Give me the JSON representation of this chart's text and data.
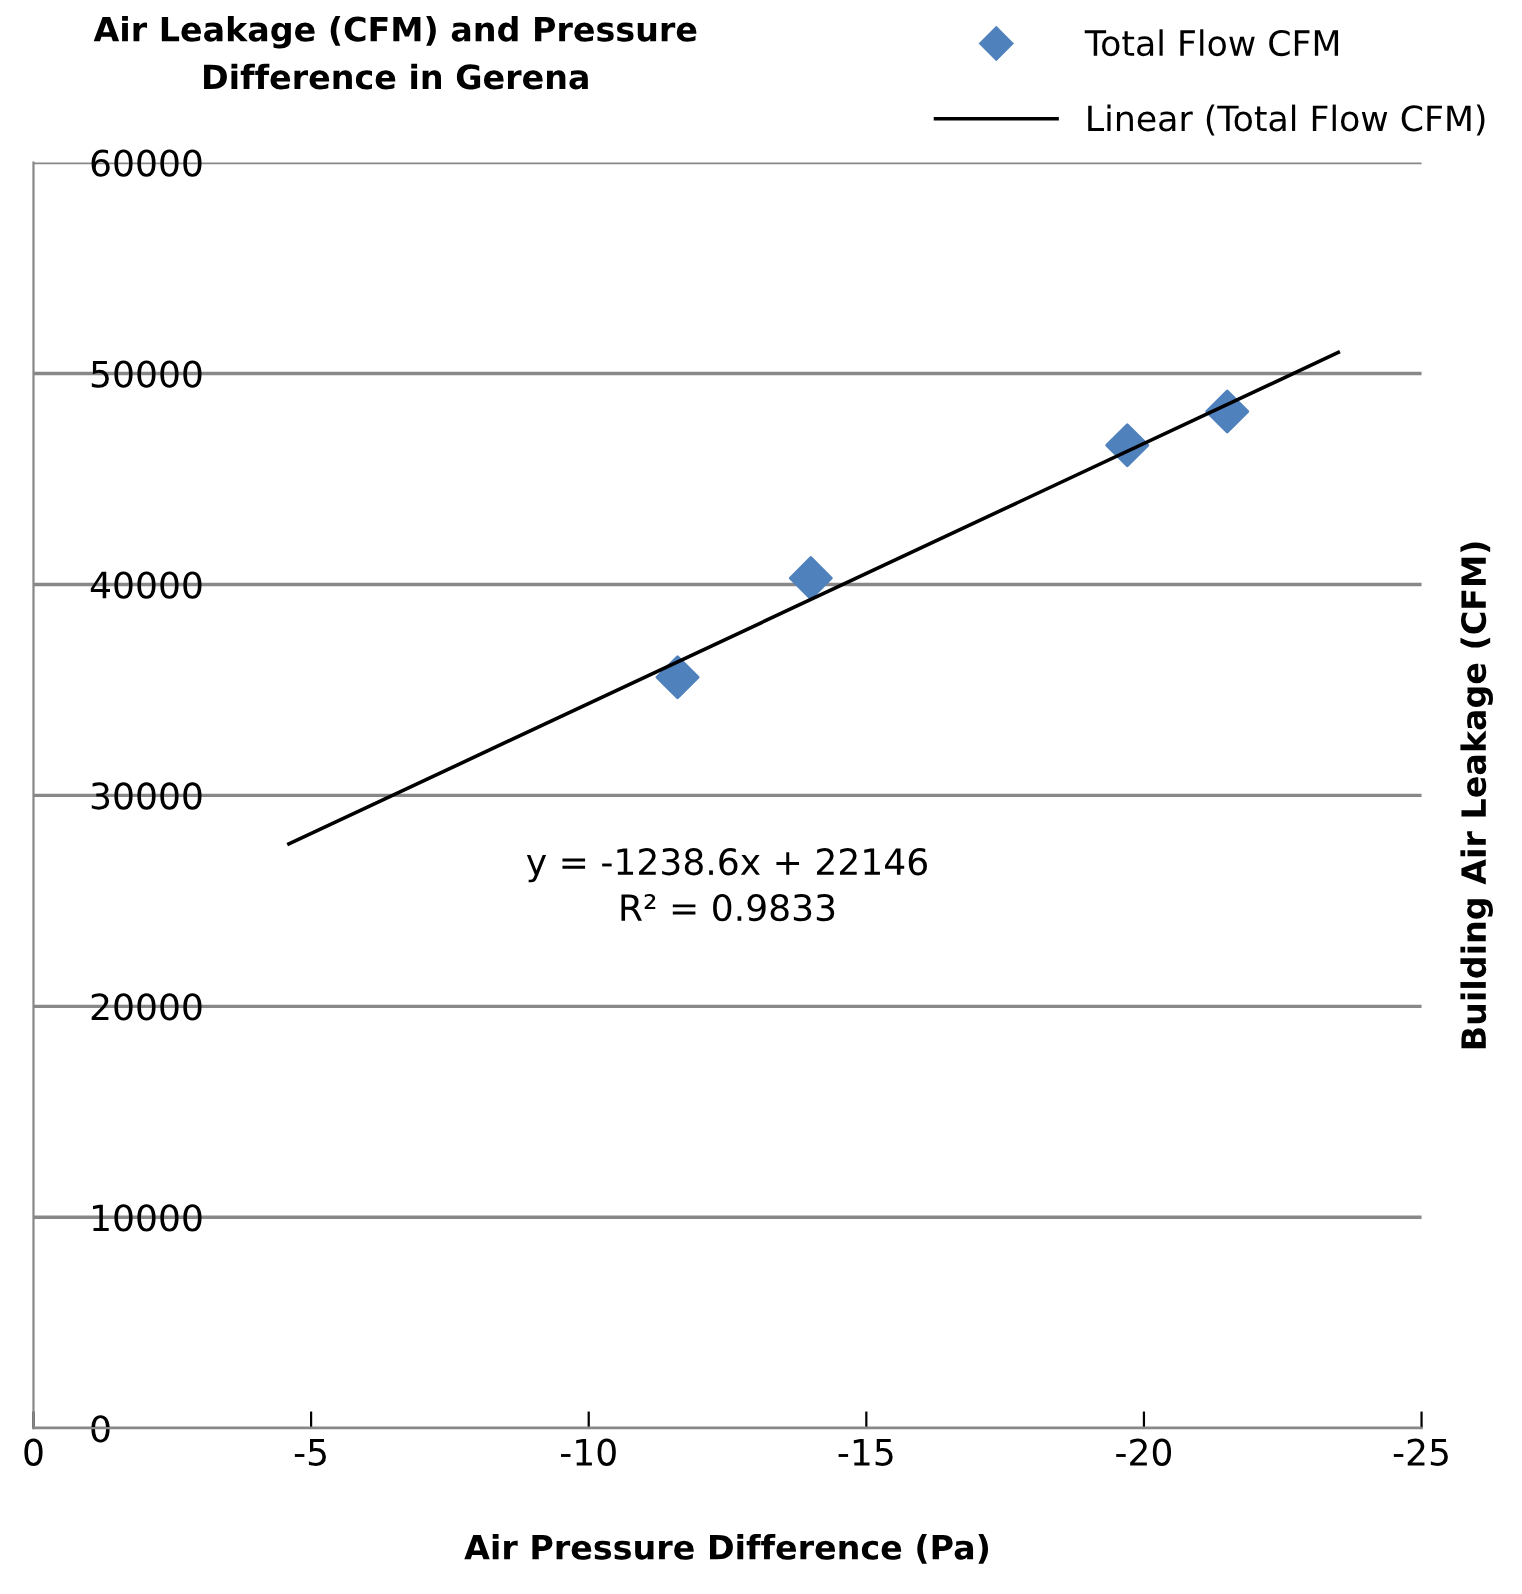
{
  "chart_data": {
    "type": "scatter",
    "title": "Air Leakage (CFM) and Pressure\nDifference in Gerena",
    "xlabel": "Air Pressure Difference (Pa)",
    "ylabel": "Building Air Leakage (CFM)",
    "series": [
      {
        "name": "Total Flow CFM",
        "color": "#4f81bd",
        "marker": "diamond",
        "x": [
          -11.6,
          -14.0,
          -19.7,
          -21.5
        ],
        "values": [
          35600,
          40300,
          46600,
          48200
        ]
      },
      {
        "name": "Linear (Total Flow CFM)",
        "type": "line",
        "color": "#000000",
        "marker": "none",
        "line_style": "solid",
        "x": [
          -4.6,
          -23.5
        ],
        "values": [
          27700,
          51000
        ]
      }
    ],
    "annotations": [
      "y = -1238.6x + 22146\nR² = 0.9833"
    ],
    "xlim": [
      0,
      -25
    ],
    "xticks": [
      0,
      -5,
      -10,
      -15,
      -20,
      -25
    ],
    "ylim": [
      0,
      60000
    ],
    "yticks": [
      0,
      10000,
      20000,
      30000,
      40000,
      50000,
      60000
    ],
    "grid": "y",
    "legend": "top right"
  }
}
